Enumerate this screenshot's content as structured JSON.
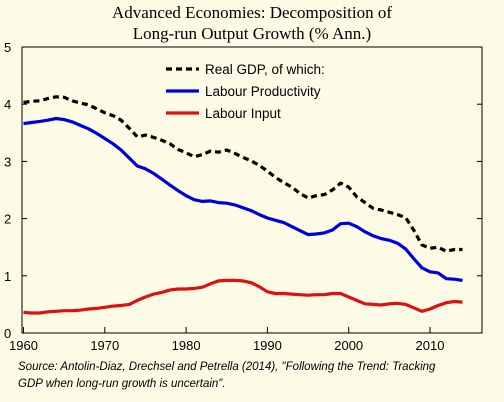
{
  "title_line1": "Advanced Economies: Decomposition of",
  "title_line2": "Long-run Output Growth (% Ann.)",
  "source_line1": "Source: Antolin-Diaz, Drechsel and Petrella (2014), \"Following the Trend: Tracking",
  "source_line2": "GDP when long-run growth is uncertain\".",
  "chart_data": {
    "type": "line",
    "title": "Advanced Economies: Decomposition of Long-run Output Growth (% Ann.)",
    "xlim": [
      1960,
      2015
    ],
    "ylim": [
      0,
      5
    ],
    "x_ticks": [
      1960,
      1970,
      1980,
      1990,
      2000,
      2010
    ],
    "y_ticks": [
      0,
      1,
      2,
      3,
      4,
      5
    ],
    "grid": false,
    "legend_position": "top-right",
    "series": [
      {
        "name": "Real GDP, of which:",
        "color": "#000000",
        "dash": "dashed",
        "x": [
          1960,
          1961,
          1962,
          1963,
          1964,
          1965,
          1966,
          1967,
          1968,
          1969,
          1970,
          1971,
          1972,
          1973,
          1974,
          1975,
          1976,
          1977,
          1978,
          1979,
          1980,
          1981,
          1982,
          1983,
          1984,
          1985,
          1986,
          1987,
          1988,
          1989,
          1990,
          1991,
          1992,
          1993,
          1994,
          1995,
          1996,
          1997,
          1998,
          1999,
          2000,
          2001,
          2002,
          2003,
          2004,
          2005,
          2006,
          2007,
          2008,
          2009,
          2010,
          2011,
          2012,
          2013,
          2014
        ],
        "y": [
          4.03,
          4.05,
          4.06,
          4.1,
          4.13,
          4.12,
          4.06,
          4.02,
          3.99,
          3.92,
          3.85,
          3.8,
          3.72,
          3.58,
          3.43,
          3.46,
          3.42,
          3.37,
          3.31,
          3.21,
          3.15,
          3.08,
          3.12,
          3.18,
          3.16,
          3.2,
          3.14,
          3.07,
          3.01,
          2.93,
          2.83,
          2.72,
          2.63,
          2.55,
          2.44,
          2.36,
          2.4,
          2.42,
          2.5,
          2.62,
          2.55,
          2.38,
          2.28,
          2.18,
          2.15,
          2.11,
          2.07,
          2.02,
          1.8,
          1.54,
          1.48,
          1.5,
          1.43,
          1.46,
          1.46
        ]
      },
      {
        "name": "Labour Productivity",
        "color": "#0000dd",
        "dash": "solid",
        "x": [
          1960,
          1961,
          1962,
          1963,
          1964,
          1965,
          1966,
          1967,
          1968,
          1969,
          1970,
          1971,
          1972,
          1973,
          1974,
          1975,
          1976,
          1977,
          1978,
          1979,
          1980,
          1981,
          1982,
          1983,
          1984,
          1985,
          1986,
          1987,
          1988,
          1989,
          1990,
          1991,
          1992,
          1993,
          1994,
          1995,
          1996,
          1997,
          1998,
          1999,
          2000,
          2001,
          2002,
          2003,
          2004,
          2005,
          2006,
          2007,
          2008,
          2009,
          2010,
          2011,
          2012,
          2013,
          2014
        ],
        "y": [
          3.66,
          3.68,
          3.7,
          3.72,
          3.75,
          3.73,
          3.69,
          3.63,
          3.57,
          3.49,
          3.4,
          3.31,
          3.2,
          3.06,
          2.92,
          2.87,
          2.79,
          2.69,
          2.59,
          2.49,
          2.4,
          2.33,
          2.3,
          2.31,
          2.28,
          2.27,
          2.24,
          2.19,
          2.14,
          2.07,
          2.01,
          1.97,
          1.93,
          1.86,
          1.79,
          1.72,
          1.73,
          1.75,
          1.8,
          1.91,
          1.92,
          1.86,
          1.77,
          1.7,
          1.65,
          1.62,
          1.57,
          1.47,
          1.3,
          1.14,
          1.07,
          1.05,
          0.95,
          0.94,
          0.92
        ]
      },
      {
        "name": "Labour Input",
        "color": "#dd1111",
        "dash": "solid",
        "x": [
          1960,
          1961,
          1962,
          1963,
          1964,
          1965,
          1966,
          1967,
          1968,
          1969,
          1970,
          1971,
          1972,
          1973,
          1974,
          1975,
          1976,
          1977,
          1978,
          1979,
          1980,
          1981,
          1982,
          1983,
          1984,
          1985,
          1986,
          1987,
          1988,
          1989,
          1990,
          1991,
          1992,
          1993,
          1994,
          1995,
          1996,
          1997,
          1998,
          1999,
          2000,
          2001,
          2002,
          2003,
          2004,
          2005,
          2006,
          2007,
          2008,
          2009,
          2010,
          2011,
          2012,
          2013,
          2014
        ],
        "y": [
          0.36,
          0.35,
          0.35,
          0.37,
          0.38,
          0.39,
          0.39,
          0.4,
          0.42,
          0.43,
          0.45,
          0.47,
          0.48,
          0.5,
          0.57,
          0.63,
          0.68,
          0.71,
          0.75,
          0.77,
          0.77,
          0.78,
          0.8,
          0.86,
          0.91,
          0.92,
          0.92,
          0.91,
          0.88,
          0.81,
          0.72,
          0.69,
          0.69,
          0.68,
          0.67,
          0.66,
          0.67,
          0.67,
          0.69,
          0.69,
          0.63,
          0.57,
          0.51,
          0.5,
          0.49,
          0.51,
          0.52,
          0.5,
          0.44,
          0.38,
          0.42,
          0.48,
          0.53,
          0.55,
          0.54
        ]
      }
    ]
  }
}
